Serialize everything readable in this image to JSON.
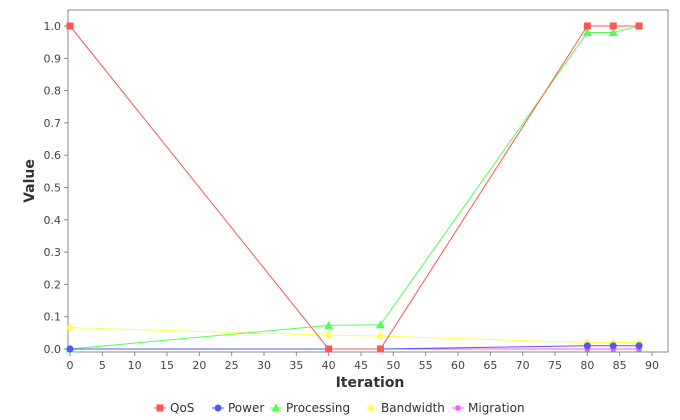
{
  "chart_data": {
    "type": "line",
    "xlabel": "Iteration",
    "ylabel": "Value",
    "xlim": [
      0,
      90
    ],
    "ylim": [
      0,
      1.05
    ],
    "xticks": [
      0,
      5,
      10,
      15,
      20,
      25,
      30,
      35,
      40,
      45,
      50,
      55,
      60,
      65,
      70,
      75,
      80,
      85,
      90
    ],
    "yticks": [
      "0.0",
      "0.1",
      "0.2",
      "0.3",
      "0.4",
      "0.5",
      "0.6",
      "0.7",
      "0.8",
      "0.9",
      "1.0"
    ],
    "grid": false,
    "legend_position": "bottom",
    "series": [
      {
        "name": "QoS",
        "color": "#ff5555",
        "marker": "square",
        "x": [
          0,
          40,
          48,
          80,
          84,
          88
        ],
        "y": [
          1.0,
          0.0,
          0.0,
          1.0,
          1.0,
          1.0
        ]
      },
      {
        "name": "Power",
        "color": "#5555ff",
        "marker": "circle",
        "x": [
          0,
          40,
          48,
          80,
          84,
          88
        ],
        "y": [
          0.0,
          0.0,
          0.0,
          0.01,
          0.01,
          0.01
        ]
      },
      {
        "name": "Processing",
        "color": "#55ff55",
        "marker": "triangle",
        "x": [
          0,
          40,
          48,
          80,
          84,
          88
        ],
        "y": [
          0.0,
          0.073,
          0.075,
          0.98,
          0.98,
          1.0
        ]
      },
      {
        "name": "Bandwidth",
        "color": "#ffff55",
        "marker": "diamond",
        "x": [
          0,
          40,
          48,
          80,
          84,
          88
        ],
        "y": [
          0.066,
          0.043,
          0.04,
          0.02,
          0.02,
          0.02
        ]
      },
      {
        "name": "Migration",
        "color": "#ff55ff",
        "marker": "square-small",
        "x": [
          0,
          40,
          48,
          80,
          84,
          88
        ],
        "y": [
          0.0,
          0.0,
          0.0,
          0.0,
          0.0,
          0.0
        ]
      }
    ]
  }
}
